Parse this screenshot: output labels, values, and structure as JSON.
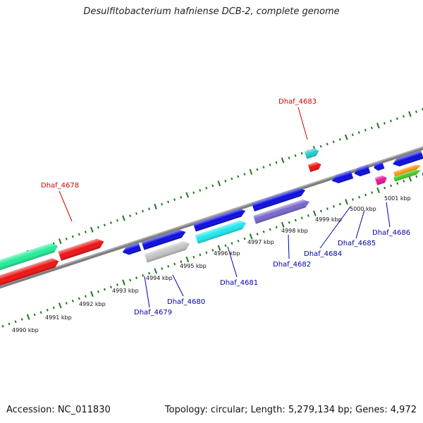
{
  "title": "Desulfitobacterium hafniense DCB-2, complete genome",
  "footer": {
    "accession": "Accession: NC_011830",
    "summary": "Topology: circular; Length: 5,279,134 bp; Genes: 4,972"
  },
  "kbp_ticks": [
    "4990 kbp",
    "4991 kbp",
    "4992 kbp",
    "4993 kbp",
    "4994 kbp",
    "4995 kbp",
    "4996 kbp",
    "4997 kbp",
    "4998 kbp",
    "4999 kbp",
    "5000 kbp",
    "5001 kbp"
  ],
  "gene_labels": {
    "forward": [
      "Dhaf_4678",
      "Dhaf_4683"
    ],
    "reverse": [
      "Dhaf_4679",
      "Dhaf_4680",
      "Dhaf_4681",
      "Dhaf_4682",
      "Dhaf_4684",
      "Dhaf_4685",
      "Dhaf_4686"
    ]
  },
  "colors": {
    "backbone": "#8a8a8a",
    "tick": "#1a7a1a",
    "forward_label": "#d40000",
    "reverse_label": "#0000aa",
    "cds_blue": "#0a0ae0",
    "cds_red": "#ee1111",
    "cds_cyan": "#20e8f0",
    "cds_teal": "#22cccc",
    "cds_green": "#22ee99",
    "cds_gray": "#c4c4c4",
    "cds_purple": "#7766cc",
    "cds_magenta": "#ee1199",
    "cds_orange": "#ff9911",
    "cds_lime": "#44cc22"
  }
}
